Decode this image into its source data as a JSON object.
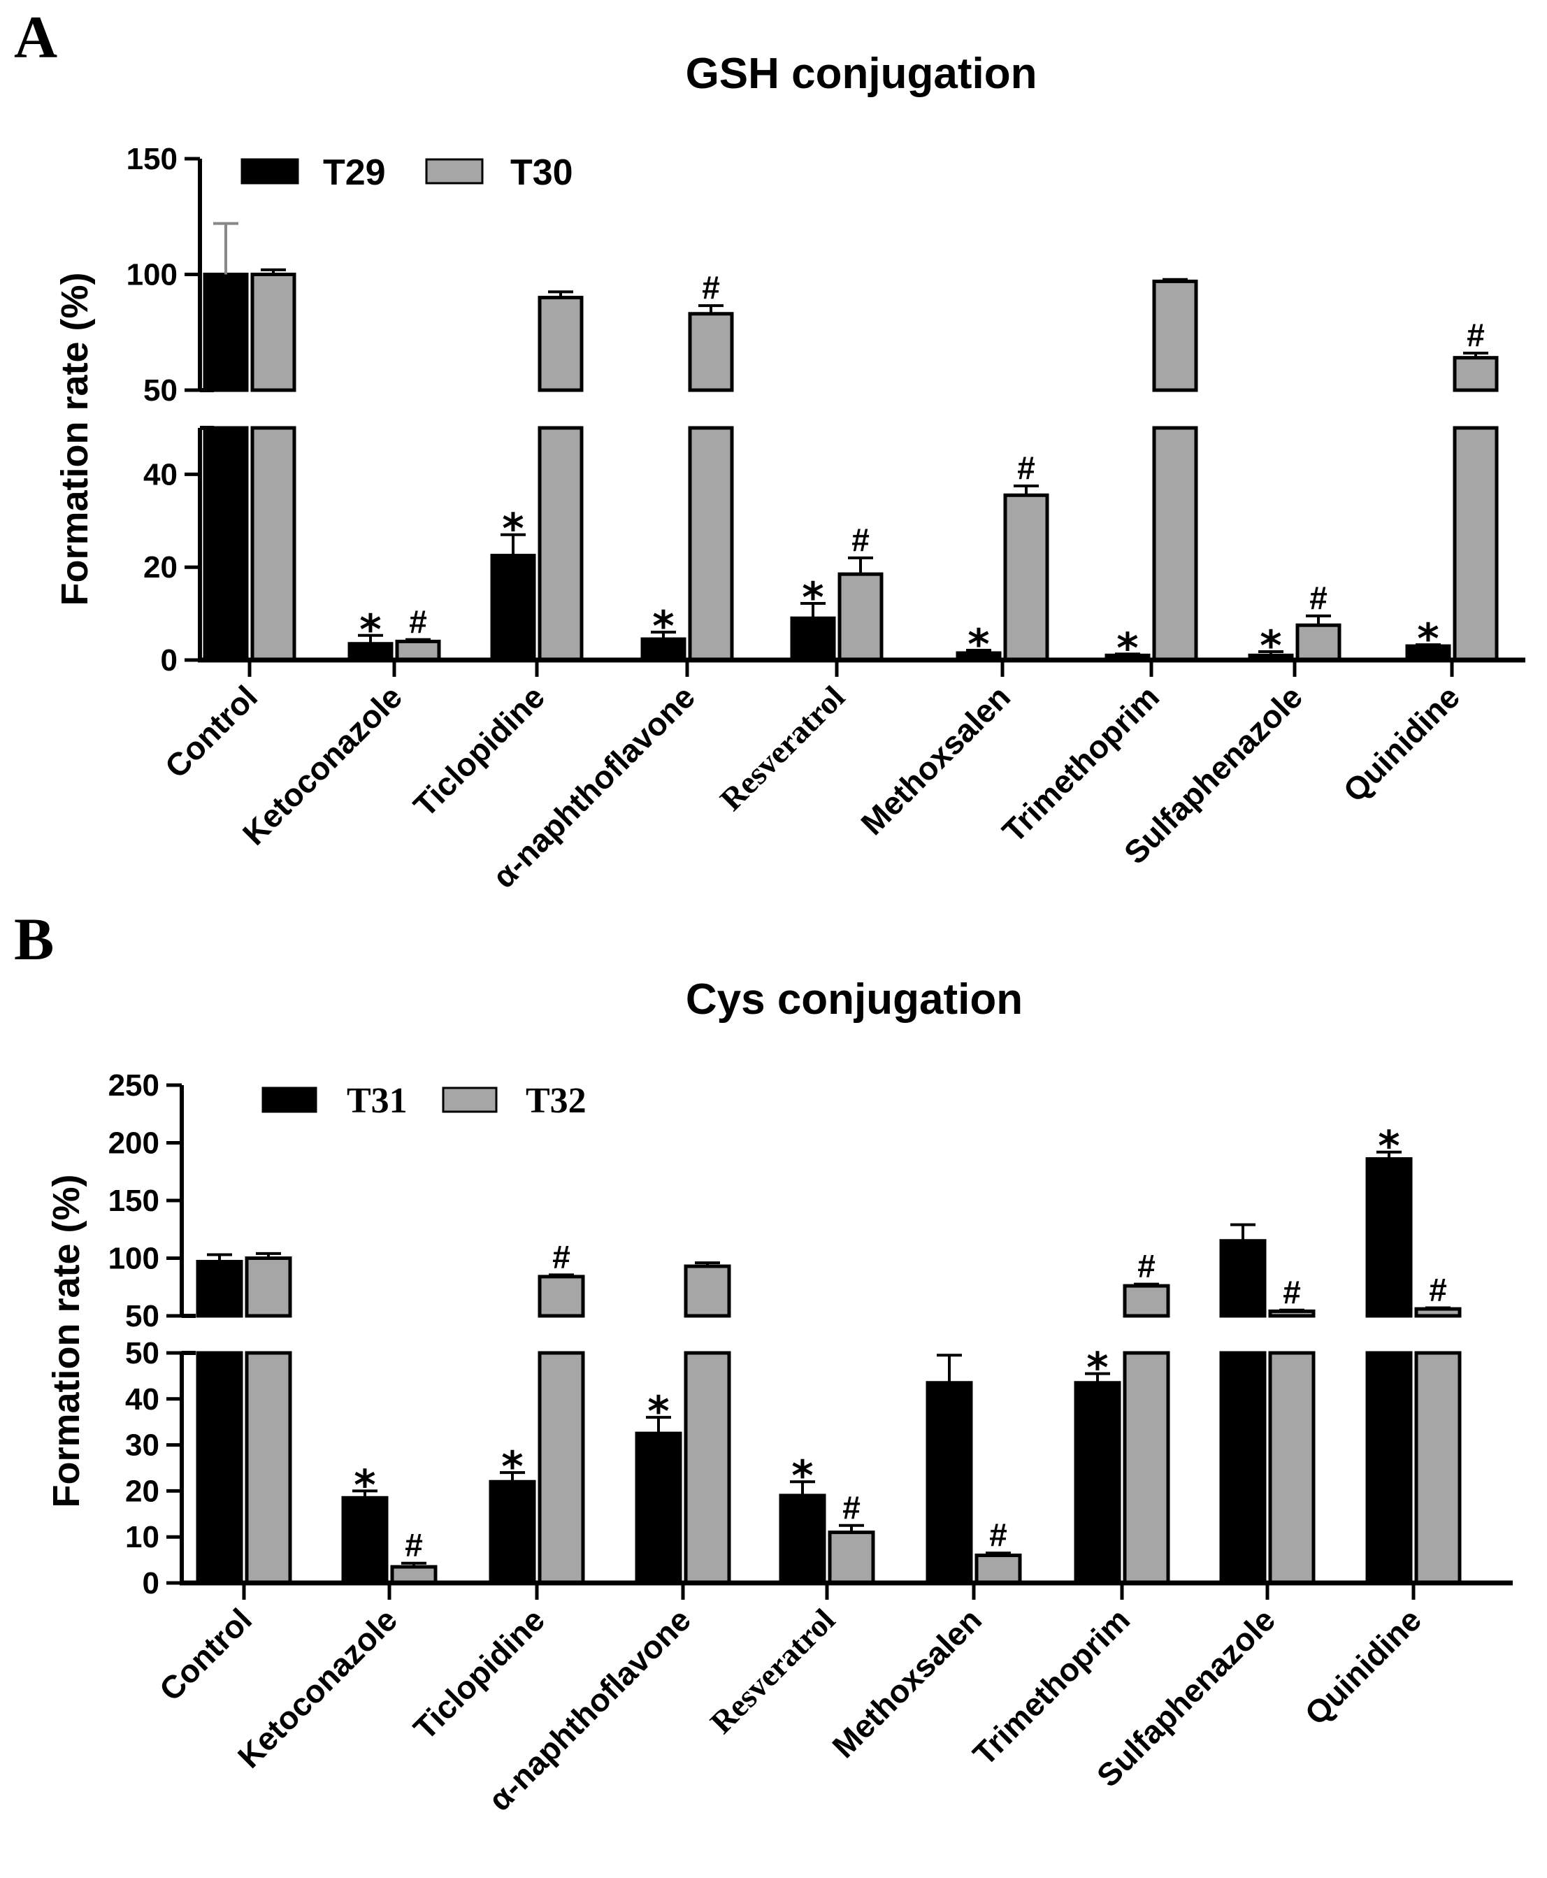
{
  "chart_data": [
    {
      "panel": "A",
      "type": "bar",
      "title": "GSH conjugation",
      "ylabel": "Formation rate (%)",
      "xlabel": "",
      "categories": [
        "Control",
        "Ketoconazole",
        "Ticlopidine",
        "α-naphthoflavone",
        "Resveratrol",
        "Methoxsalen",
        "Trimethoprim",
        "Sulfaphenazole",
        "Quinidine"
      ],
      "series": [
        {
          "name": "T29",
          "color": "#000000",
          "values": [
            100,
            3.5,
            22.5,
            4.5,
            9,
            1.5,
            1,
            1,
            3
          ],
          "errors": [
            22,
            1.8,
            4.5,
            1.5,
            3.2,
            0.6,
            0.3,
            0.8,
            0.3
          ],
          "marks": [
            "",
            "*",
            "*",
            "*",
            "*",
            "*",
            "*",
            "*",
            "*"
          ]
        },
        {
          "name": "T30",
          "color": "#a6a6a6",
          "values": [
            100,
            4,
            90,
            83,
            18.5,
            35.5,
            97,
            7.5,
            64
          ],
          "errors": [
            2,
            0.4,
            2.5,
            3.5,
            3.5,
            2,
            0.8,
            2,
            2
          ],
          "marks": [
            "",
            "#",
            "",
            "#",
            "#",
            "#",
            "",
            "#",
            "#"
          ]
        }
      ],
      "yticks_lower": [
        "0",
        "20",
        "40"
      ],
      "yticks_upper": [
        "50",
        "100",
        "150"
      ],
      "y_break": [
        50,
        50
      ],
      "ylim": [
        0,
        150
      ],
      "legend_position": "top-left"
    },
    {
      "panel": "B",
      "type": "bar",
      "title": "Cys conjugation",
      "ylabel": "Formation rate (%)",
      "xlabel": "",
      "categories": [
        "Control",
        "Ketoconazole",
        "Ticlopidine",
        "α-naphthoflavone",
        "Resveratrol",
        "Methoxsalen",
        "Trimethoprim",
        "Sulfaphenazole",
        "Quinidine"
      ],
      "series": [
        {
          "name": "T31",
          "color": "#000000",
          "values": [
            97,
            18.5,
            22,
            32.5,
            19,
            43.5,
            43.5,
            115,
            186
          ],
          "errors": [
            6,
            1.5,
            2,
            3.5,
            3,
            6,
            2,
            14,
            6
          ],
          "marks": [
            "",
            "*",
            "*",
            "*",
            "*",
            "",
            "*",
            "",
            "*"
          ]
        },
        {
          "name": "T32",
          "color": "#a6a6a6",
          "values": [
            100,
            3.5,
            84,
            93,
            11,
            6,
            76,
            54,
            56
          ],
          "errors": [
            4,
            0.8,
            1.5,
            3,
            1.5,
            0.5,
            1.5,
            1,
            1
          ],
          "marks": [
            "",
            "#",
            "#",
            "",
            "#",
            "#",
            "#",
            "#",
            "#"
          ]
        }
      ],
      "yticks_lower": [
        "0",
        "10",
        "20",
        "30",
        "40",
        "50"
      ],
      "yticks_upper": [
        "50",
        "100",
        "150",
        "200",
        "250"
      ],
      "y_break": [
        50,
        50
      ],
      "ylim": [
        0,
        250
      ],
      "legend_position": "top-left"
    }
  ],
  "panel_labels": [
    "A",
    "B"
  ],
  "styling": {
    "accent_black": "#000000",
    "bar_gray": "#a6a6a6"
  }
}
